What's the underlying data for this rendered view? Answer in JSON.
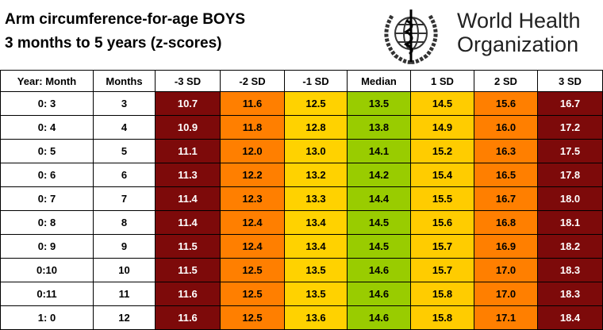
{
  "header": {
    "title_lines": [
      "Arm circumference-for-age BOYS",
      "3 months to 5 years (z-scores)"
    ],
    "logo_lines": [
      "World Health",
      "Organization"
    ]
  },
  "table": {
    "columns": [
      "Year: Month",
      "Months",
      "-3 SD",
      "-2 SD",
      "-1 SD",
      "Median",
      "1 SD",
      "2 SD",
      "3 SD"
    ],
    "rows": [
      [
        "0: 3",
        "3",
        "10.7",
        "11.6",
        "12.5",
        "13.5",
        "14.5",
        "15.6",
        "16.7"
      ],
      [
        "0: 4",
        "4",
        "10.9",
        "11.8",
        "12.8",
        "13.8",
        "14.9",
        "16.0",
        "17.2"
      ],
      [
        "0: 5",
        "5",
        "11.1",
        "12.0",
        "13.0",
        "14.1",
        "15.2",
        "16.3",
        "17.5"
      ],
      [
        "0: 6",
        "6",
        "11.3",
        "12.2",
        "13.2",
        "14.2",
        "15.4",
        "16.5",
        "17.8"
      ],
      [
        "0: 7",
        "7",
        "11.4",
        "12.3",
        "13.3",
        "14.4",
        "15.5",
        "16.7",
        "18.0"
      ],
      [
        "0: 8",
        "8",
        "11.4",
        "12.4",
        "13.4",
        "14.5",
        "15.6",
        "16.8",
        "18.1"
      ],
      [
        "0: 9",
        "9",
        "11.5",
        "12.4",
        "13.4",
        "14.5",
        "15.7",
        "16.9",
        "18.2"
      ],
      [
        "0:10",
        "10",
        "11.5",
        "12.5",
        "13.5",
        "14.6",
        "15.7",
        "17.0",
        "18.3"
      ],
      [
        "0:11",
        "11",
        "11.6",
        "12.5",
        "13.5",
        "14.6",
        "15.8",
        "17.0",
        "18.3"
      ],
      [
        "1: 0",
        "12",
        "11.6",
        "12.5",
        "13.6",
        "14.6",
        "15.8",
        "17.1",
        "18.4"
      ]
    ]
  }
}
